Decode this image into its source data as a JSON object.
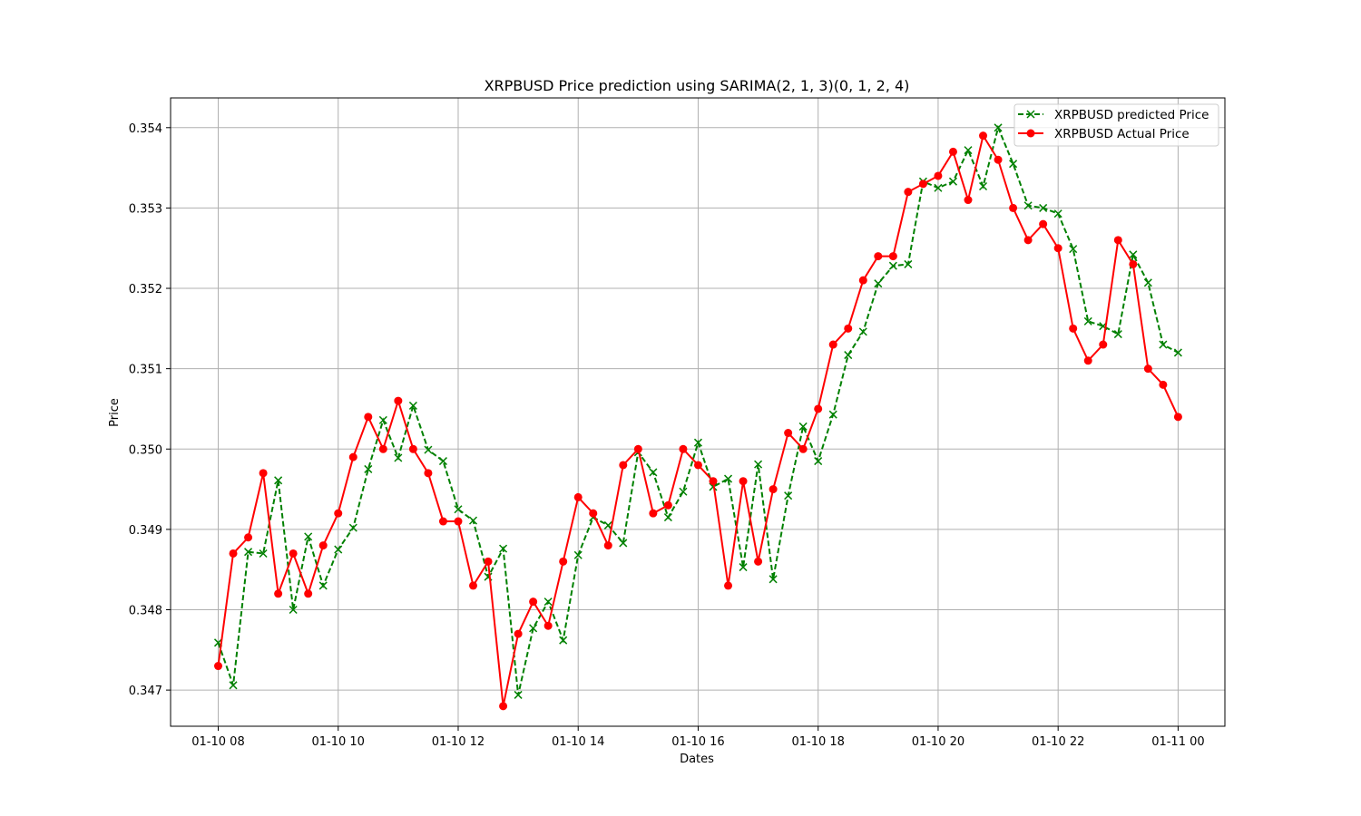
{
  "chart_data": {
    "type": "line",
    "title": "XRPBUSD Price prediction using SARIMA(2, 1, 3)(0, 1, 2, 4)",
    "xlabel": "Dates",
    "ylabel": "Price",
    "x_start": "01-10 08:00",
    "x_step_minutes": 15,
    "x_ticks": [
      "01-10 08",
      "01-10 10",
      "01-10 12",
      "01-10 14",
      "01-10 16",
      "01-10 18",
      "01-10 20",
      "01-10 22",
      "01-11 00"
    ],
    "y_ticks": [
      "0.347",
      "0.348",
      "0.349",
      "0.350",
      "0.351",
      "0.352",
      "0.353",
      "0.354"
    ],
    "ylim": [
      0.34655,
      0.35437
    ],
    "grid": true,
    "legend_position": "top-right",
    "series": [
      {
        "name": "XRPBUSD predicted Price",
        "color": "#008000",
        "line_style": "dashed",
        "marker": "x",
        "values": [
          0.34759,
          0.34706,
          0.34872,
          0.3487,
          0.34961,
          0.348,
          0.34891,
          0.3483,
          0.34875,
          0.34902,
          0.34975,
          0.35036,
          0.34989,
          0.35054,
          0.34999,
          0.34985,
          0.34925,
          0.34911,
          0.34841,
          0.34876,
          0.34694,
          0.34777,
          0.3481,
          0.34762,
          0.34868,
          0.34915,
          0.34905,
          0.34883,
          0.34996,
          0.34971,
          0.34915,
          0.34947,
          0.35008,
          0.34953,
          0.34963,
          0.34853,
          0.34981,
          0.34838,
          0.34942,
          0.35028,
          0.34985,
          0.35043,
          0.35117,
          0.35146,
          0.35206,
          0.35228,
          0.3523,
          0.35333,
          0.35325,
          0.35333,
          0.35372,
          0.35327,
          0.354,
          0.35355,
          0.35303,
          0.353,
          0.35293,
          0.35249,
          0.35159,
          0.35153,
          0.35143,
          0.35242,
          0.35207,
          0.3513,
          0.3512
        ]
      },
      {
        "name": "XRPBUSD Actual Price",
        "color": "#ff0000",
        "line_style": "solid",
        "marker": "o",
        "values": [
          0.3473,
          0.3487,
          0.3489,
          0.3497,
          0.3482,
          0.3487,
          0.3482,
          0.3488,
          0.3492,
          0.3499,
          0.3504,
          0.35,
          0.3506,
          0.35,
          0.3497,
          0.3491,
          0.3491,
          0.3483,
          0.3486,
          0.3468,
          0.3477,
          0.3481,
          0.3478,
          0.3486,
          0.3494,
          0.3492,
          0.3488,
          0.3498,
          0.35,
          0.3492,
          0.3493,
          0.35,
          0.3498,
          0.3496,
          0.3483,
          0.3496,
          0.3486,
          0.3495,
          0.3502,
          0.35,
          0.3505,
          0.3513,
          0.3515,
          0.3521,
          0.3524,
          0.3524,
          0.3532,
          0.3533,
          0.3534,
          0.3537,
          0.3531,
          0.3539,
          0.3536,
          0.353,
          0.3526,
          0.3528,
          0.3525,
          0.3515,
          0.3511,
          0.3513,
          0.3526,
          0.3523,
          0.351,
          0.3508,
          0.3504
        ]
      }
    ]
  }
}
